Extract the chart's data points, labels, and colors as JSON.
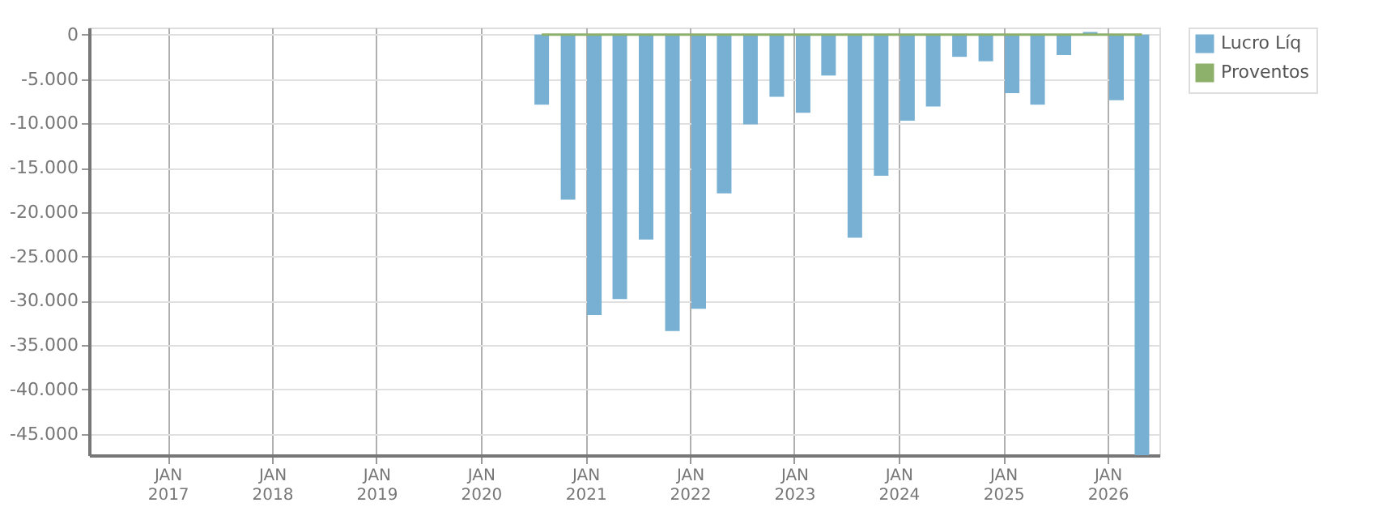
{
  "chart_data": {
    "type": "bar",
    "x": [
      "2020-08",
      "2020-11",
      "2021-02",
      "2021-05",
      "2021-08",
      "2021-11",
      "2022-02",
      "2022-05",
      "2022-08",
      "2022-11",
      "2023-02",
      "2023-05",
      "2023-08",
      "2023-11",
      "2024-02",
      "2024-05",
      "2024-08",
      "2024-11",
      "2025-02",
      "2025-05",
      "2025-08",
      "2025-11",
      "2026-02",
      "2026-05"
    ],
    "series": [
      {
        "name": "Lucro Líq",
        "color": "#77b0d2",
        "values": [
          -7900,
          -18600,
          -31600,
          -29800,
          -23100,
          -33400,
          -30900,
          -17900,
          -10100,
          -7000,
          -8800,
          -4600,
          -22900,
          -15900,
          -9700,
          -8100,
          -2500,
          -3000,
          -6600,
          -7900,
          -2300,
          300,
          -7400,
          -47400
        ]
      },
      {
        "name": "Proventos",
        "color": "#8db06a",
        "type": "line",
        "values": [
          0,
          0,
          0,
          0,
          0,
          0,
          0,
          0,
          0,
          0,
          0,
          0,
          0,
          0,
          0,
          0,
          0,
          0,
          0,
          0,
          0,
          0,
          0,
          0
        ]
      }
    ],
    "ylim": [
      -47400,
      800
    ],
    "yticks": [
      0,
      {
        "value": -5000,
        "label": "-5.000"
      },
      {
        "value": -10000,
        "label": "-10.000"
      },
      {
        "value": -15000,
        "label": "-15.000"
      },
      {
        "value": -20000,
        "label": "-20.000"
      },
      {
        "value": -25000,
        "label": "-25.000"
      },
      {
        "value": -30000,
        "label": "-30.000"
      },
      {
        "value": -35000,
        "label": "-35.000"
      },
      {
        "value": -40000,
        "label": "-40.000"
      },
      {
        "value": -45000,
        "label": "-45.000"
      }
    ],
    "xlim": [
      "2016-04",
      "2026-07"
    ],
    "xticks": [
      {
        "value": "2017-01",
        "label": "JAN 2017"
      },
      {
        "value": "2018-01",
        "label": "JAN 2018"
      },
      {
        "value": "2019-01",
        "label": "JAN 2019"
      },
      {
        "value": "2020-01",
        "label": "JAN 2020"
      },
      {
        "value": "2021-01",
        "label": "JAN 2021"
      },
      {
        "value": "2022-01",
        "label": "JAN 2022"
      },
      {
        "value": "2023-01",
        "label": "JAN 2023"
      },
      {
        "value": "2024-01",
        "label": "JAN 2024"
      },
      {
        "value": "2025-01",
        "label": "JAN 2025"
      },
      {
        "value": "2026-01",
        "label": "JAN 2026"
      }
    ],
    "grid": true,
    "legend": "right"
  }
}
